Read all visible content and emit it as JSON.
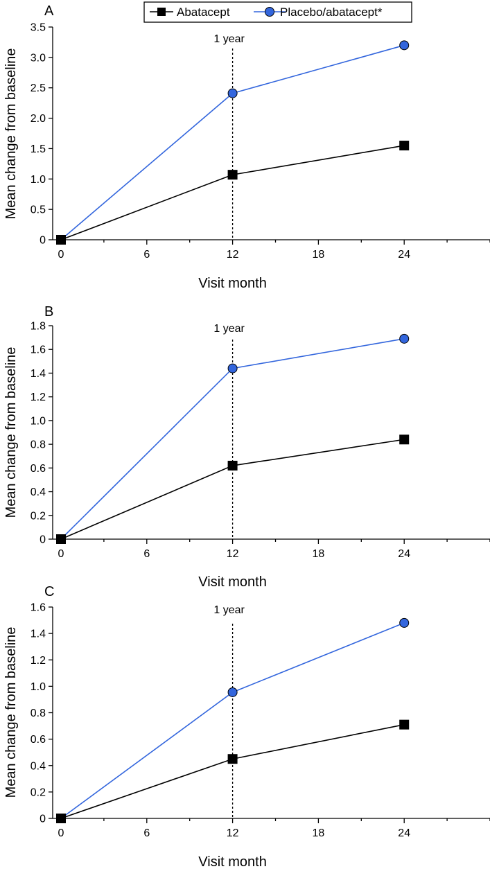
{
  "legend": {
    "items": [
      {
        "label": "Abatacept",
        "color": "#000000",
        "marker": "square"
      },
      {
        "label": "Placebo/abatacept*",
        "color": "#3366dd",
        "marker": "circle"
      }
    ]
  },
  "chart_data": [
    {
      "type": "line",
      "panel_label": "A",
      "xlabel": "Visit month",
      "ylabel": "Mean change from baseline",
      "xlim": [
        0,
        30
      ],
      "ylim": [
        0,
        3.5
      ],
      "xticks": [
        0,
        6,
        12,
        18,
        24
      ],
      "yticks": [
        0,
        0.5,
        1.0,
        1.5,
        2.0,
        2.5,
        3.0,
        3.5
      ],
      "ytick_labels": [
        "0",
        "0.5",
        "1.0",
        "1.5",
        "2.0",
        "2.5",
        "3.0",
        "3.5"
      ],
      "annotation": {
        "label": "1 year",
        "x": 12
      },
      "x": [
        0,
        12,
        24
      ],
      "series": [
        {
          "name": "Abatacept",
          "values": [
            0,
            1.07,
            1.55
          ]
        },
        {
          "name": "Placebo/abatacept*",
          "values": [
            0,
            2.41,
            3.2
          ]
        }
      ]
    },
    {
      "type": "line",
      "panel_label": "B",
      "xlabel": "Visit month",
      "ylabel": "Mean change from baseline",
      "xlim": [
        0,
        30
      ],
      "ylim": [
        0,
        1.8
      ],
      "xticks": [
        0,
        6,
        12,
        18,
        24
      ],
      "yticks": [
        0,
        0.2,
        0.4,
        0.6,
        0.8,
        1.0,
        1.2,
        1.4,
        1.6,
        1.8
      ],
      "ytick_labels": [
        "0",
        "0.2",
        "0.4",
        "0.6",
        "0.8",
        "1.0",
        "1.2",
        "1.4",
        "1.6",
        "1.8"
      ],
      "annotation": {
        "label": "1 year",
        "x": 12
      },
      "x": [
        0,
        12,
        24
      ],
      "series": [
        {
          "name": "Abatacept",
          "values": [
            0,
            0.62,
            0.84
          ]
        },
        {
          "name": "Placebo/abatacept*",
          "values": [
            0,
            1.44,
            1.69
          ]
        }
      ]
    },
    {
      "type": "line",
      "panel_label": "C",
      "xlabel": "Visit month",
      "ylabel": "Mean change from baseline",
      "xlim": [
        0,
        30
      ],
      "ylim": [
        0,
        1.6
      ],
      "xticks": [
        0,
        6,
        12,
        18,
        24
      ],
      "yticks": [
        0,
        0.2,
        0.4,
        0.6,
        0.8,
        1.0,
        1.2,
        1.4,
        1.6
      ],
      "ytick_labels": [
        "0",
        "0.2",
        "0.4",
        "0.6",
        "0.8",
        "1.0",
        "1.2",
        "1.4",
        "1.6"
      ],
      "annotation": {
        "label": "1 year",
        "x": 12
      },
      "x": [
        0,
        12,
        24
      ],
      "series": [
        {
          "name": "Abatacept",
          "values": [
            0,
            0.45,
            0.71
          ]
        },
        {
          "name": "Placebo/abatacept*",
          "values": [
            0,
            0.955,
            1.48
          ]
        }
      ]
    }
  ]
}
